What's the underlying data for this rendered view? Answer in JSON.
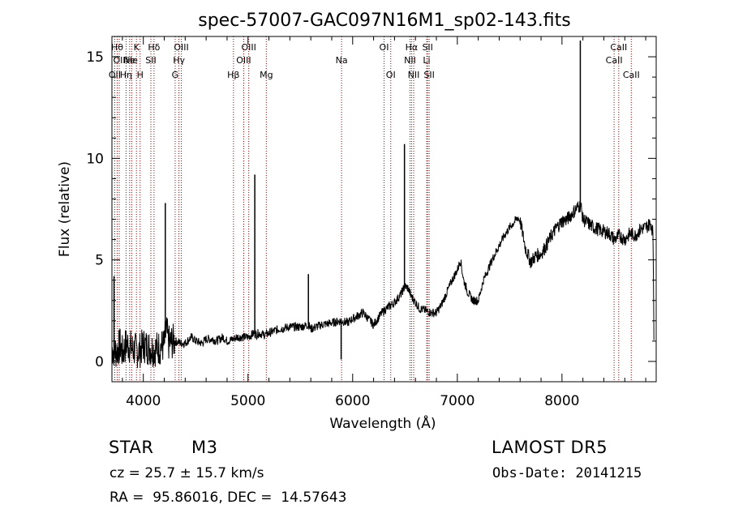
{
  "chart_data": {
    "type": "line",
    "title": "spec-57007-GAC097N16M1_sp02-143.fits",
    "xlabel": "Wavelength (Å)",
    "ylabel": "Flux (relative)",
    "xlim": [
      3700,
      8900
    ],
    "ylim": [
      -1.0,
      16.0
    ],
    "xticks": [
      4000,
      5000,
      6000,
      7000,
      8000
    ],
    "yticks": [
      0,
      5,
      10,
      15
    ],
    "grid": false,
    "legend": "none",
    "series": [
      {
        "color": "#000000",
        "x": [
          3700,
          3740,
          3780,
          3800,
          3840,
          3900,
          3960,
          4000,
          4040,
          4100,
          4160,
          4200,
          4220,
          4240,
          4300,
          4360,
          4400,
          4460,
          4500,
          4560,
          4600,
          4660,
          4700,
          4760,
          4800,
          4860,
          4900,
          4960,
          5000,
          5060,
          5080,
          5100,
          5160,
          5200,
          5300,
          5400,
          5500,
          5580,
          5600,
          5700,
          5800,
          5890,
          5950,
          6000,
          6100,
          6150,
          6200,
          6280,
          6320,
          6400,
          6460,
          6500,
          6530,
          6560,
          6600,
          6640,
          6700,
          6750,
          6800,
          6850,
          6900,
          6950,
          7000,
          7030,
          7060,
          7100,
          7150,
          7200,
          7250,
          7300,
          7350,
          7400,
          7450,
          7500,
          7550,
          7580,
          7600,
          7620,
          7650,
          7700,
          7750,
          7800,
          7850,
          7900,
          7950,
          8000,
          8050,
          8100,
          8150,
          8180,
          8200,
          8250,
          8300,
          8350,
          8400,
          8450,
          8500,
          8550,
          8600,
          8650,
          8700,
          8750,
          8800,
          8850,
          8870,
          8880
        ],
        "y": [
          0.6,
          0.5,
          0.8,
          0.4,
          0.9,
          0.6,
          0.5,
          0.8,
          0.7,
          0.6,
          0.7,
          0.8,
          1.6,
          0.9,
          1.0,
          0.9,
          0.9,
          1.2,
          1.0,
          0.9,
          1.1,
          1.1,
          1.0,
          1.2,
          1.0,
          1.1,
          1.2,
          1.2,
          1.2,
          1.4,
          1.3,
          1.4,
          1.3,
          1.4,
          1.6,
          1.7,
          1.7,
          1.8,
          1.6,
          1.8,
          1.9,
          2.0,
          1.9,
          2.1,
          2.4,
          2.1,
          1.8,
          2.4,
          2.6,
          2.9,
          3.3,
          3.7,
          3.6,
          3.2,
          2.9,
          2.6,
          2.5,
          2.4,
          2.4,
          2.8,
          3.4,
          4.0,
          4.5,
          5.0,
          4.0,
          3.4,
          3.0,
          3.0,
          4.0,
          4.6,
          5.2,
          5.7,
          6.2,
          6.6,
          6.9,
          7.1,
          6.9,
          6.4,
          5.6,
          4.9,
          5.2,
          5.3,
          5.7,
          6.2,
          6.6,
          6.9,
          7.0,
          7.3,
          7.6,
          7.7,
          7.0,
          6.8,
          6.6,
          6.5,
          6.4,
          6.3,
          6.0,
          6.2,
          6.0,
          6.3,
          6.2,
          6.5,
          6.6,
          6.8,
          6.3,
          0.1
        ]
      }
    ],
    "emission_spikes": [
      {
        "x": 3720,
        "y": 4.2
      },
      {
        "x": 4210,
        "y": 7.8
      },
      {
        "x": 5065,
        "y": 9.2
      },
      {
        "x": 5577,
        "y": 4.3
      },
      {
        "x": 6495,
        "y": 10.7
      },
      {
        "x": 8175,
        "y": 15.8
      }
    ],
    "absorption_spikes": [
      {
        "x": 5890,
        "y": 0.1
      }
    ],
    "lines": [
      {
        "x": 3727,
        "label": "OII",
        "row": 3
      },
      {
        "x": 3750,
        "label": "Hθ",
        "row": 1
      },
      {
        "x": 3770,
        "label": "OII",
        "row": 2
      },
      {
        "x": 3835,
        "label": "Hη",
        "row": 3
      },
      {
        "x": 3869,
        "label": "Ne",
        "row": 2
      },
      {
        "x": 3889,
        "label": "He",
        "row": 2
      },
      {
        "x": 3934,
        "label": "K",
        "row": 1
      },
      {
        "x": 3969,
        "label": "H",
        "row": 3
      },
      {
        "x": 4072,
        "label": "SII",
        "row": 2
      },
      {
        "x": 4102,
        "label": "Hδ",
        "row": 1
      },
      {
        "x": 4304,
        "label": "G",
        "row": 3
      },
      {
        "x": 4340,
        "label": "Hγ",
        "row": 2
      },
      {
        "x": 4363,
        "label": "OIII",
        "row": 1
      },
      {
        "x": 4861,
        "label": "Hβ",
        "row": 3
      },
      {
        "x": 4959,
        "label": "OIII",
        "row": 2
      },
      {
        "x": 5007,
        "label": "OIII",
        "row": 1
      },
      {
        "x": 5175,
        "label": "Mg",
        "row": 3
      },
      {
        "x": 5894,
        "label": "Na",
        "row": 2
      },
      {
        "x": 6300,
        "label": "OI",
        "row": 1
      },
      {
        "x": 6364,
        "label": "OI",
        "row": 3
      },
      {
        "x": 6548,
        "label": "NII",
        "row": 2
      },
      {
        "x": 6563,
        "label": "Hα",
        "row": 1
      },
      {
        "x": 6583,
        "label": "NII",
        "row": 3
      },
      {
        "x": 6707,
        "label": "Li",
        "row": 2
      },
      {
        "x": 6716,
        "label": "SII",
        "row": 1
      },
      {
        "x": 6731,
        "label": "SII",
        "row": 3
      },
      {
        "x": 8498,
        "label": "CaII",
        "row": 2
      },
      {
        "x": 8542,
        "label": "CaII",
        "row": 1
      },
      {
        "x": 8662,
        "label": "CaII",
        "row": 3
      }
    ]
  },
  "info": {
    "object_class": "STAR",
    "subclass": "M3",
    "survey": "LAMOST DR5",
    "cz": "cz = 25.7 ± 15.7 km/s",
    "obs_date": "Obs-Date: 20141215",
    "coords": "RA =  95.86016, DEC =  14.57643"
  },
  "colors": {
    "spectrum": "#000000",
    "line_markers": "#a00000",
    "axes": "#000000",
    "background": "#ffffff"
  }
}
